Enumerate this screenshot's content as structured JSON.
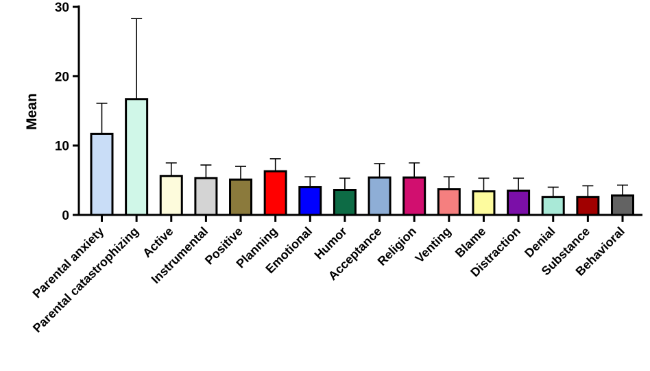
{
  "chart_data": {
    "type": "bar",
    "title": "",
    "xlabel": "",
    "ylabel": "Mean",
    "ylim": [
      0,
      30
    ],
    "yticks": [
      0,
      10,
      20,
      30
    ],
    "grid": false,
    "categories": [
      "Parental anxiety",
      "Parental catastrophizing",
      "Active",
      "Instrumental",
      "Positive",
      "Planning",
      "Emotional",
      "Humor",
      "Acceptance",
      "Religion",
      "Venting",
      "Blame",
      "Distraction",
      "Denial",
      "Substance",
      "Behavioral"
    ],
    "values": [
      11.7,
      16.7,
      5.6,
      5.3,
      5.1,
      6.3,
      4.0,
      3.6,
      5.4,
      5.4,
      3.7,
      3.4,
      3.5,
      2.6,
      2.6,
      2.8
    ],
    "errors": [
      4.4,
      11.6,
      1.9,
      1.9,
      1.9,
      1.8,
      1.5,
      1.7,
      2.0,
      2.1,
      1.8,
      1.9,
      1.8,
      1.4,
      1.6,
      1.5
    ],
    "colors": [
      "#c9ddf7",
      "#d0f7e8",
      "#fdfbdc",
      "#d4d4d4",
      "#8b7a3c",
      "#ff0000",
      "#0000ff",
      "#0d6b45",
      "#8eaed6",
      "#d10f6f",
      "#f57f7f",
      "#fdfb9e",
      "#7b0fa8",
      "#a9e9d7",
      "#a10000",
      "#636363"
    ]
  }
}
